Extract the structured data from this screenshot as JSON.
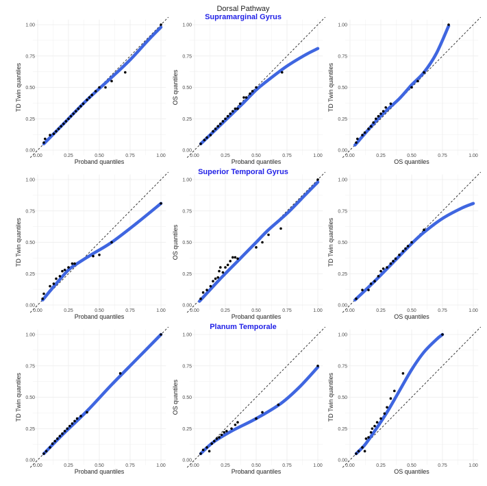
{
  "figure": {
    "title": "Dorsal Pathway",
    "row_title_color": "#1f1fe6",
    "smooth_color": "#3f66e0",
    "ref_line_color": "#222222",
    "point_color": "#000000",
    "rows": [
      {
        "title": "Supramarginal Gyrus"
      },
      {
        "title": "Superior Temporal Gyrus"
      },
      {
        "title": "Planum Temporale"
      }
    ]
  },
  "chart_data": [
    {
      "type": "scatter",
      "row": 0,
      "col": 0,
      "xlabel": "Proband quantiles",
      "ylabel": "TD Twin quantiles",
      "xlim": [
        0,
        1
      ],
      "ylim": [
        0,
        1
      ],
      "xticks": [
        "0.00",
        "0.25",
        "0.50",
        "0.75",
        "1.00"
      ],
      "yticks": [
        "0.00",
        "0.25",
        "0.50",
        "0.75",
        "1.00"
      ],
      "grid": true,
      "reference_line": "y=x",
      "points": [
        [
          0.05,
          0.06
        ],
        [
          0.06,
          0.09
        ],
        [
          0.1,
          0.12
        ],
        [
          0.13,
          0.13
        ],
        [
          0.15,
          0.15
        ],
        [
          0.17,
          0.17
        ],
        [
          0.19,
          0.19
        ],
        [
          0.21,
          0.21
        ],
        [
          0.23,
          0.23
        ],
        [
          0.25,
          0.25
        ],
        [
          0.27,
          0.27
        ],
        [
          0.29,
          0.29
        ],
        [
          0.31,
          0.31
        ],
        [
          0.33,
          0.33
        ],
        [
          0.35,
          0.35
        ],
        [
          0.37,
          0.37
        ],
        [
          0.4,
          0.4
        ],
        [
          0.42,
          0.42
        ],
        [
          0.44,
          0.44
        ],
        [
          0.47,
          0.47
        ],
        [
          0.5,
          0.5
        ],
        [
          0.55,
          0.5
        ],
        [
          0.6,
          0.55
        ],
        [
          0.71,
          0.62
        ],
        [
          1.0,
          1.0
        ]
      ],
      "smooth": [
        [
          0.05,
          0.05
        ],
        [
          0.2,
          0.2
        ],
        [
          0.4,
          0.4
        ],
        [
          0.6,
          0.58
        ],
        [
          0.75,
          0.72
        ],
        [
          0.9,
          0.88
        ],
        [
          1.0,
          0.98
        ]
      ]
    },
    {
      "type": "scatter",
      "row": 0,
      "col": 1,
      "xlabel": "Proband quantiles",
      "ylabel": "OS quantiles",
      "xlim": [
        0,
        1
      ],
      "ylim": [
        0,
        1
      ],
      "xticks": [
        "0.00",
        "0.25",
        "0.50",
        "0.75",
        "1.00"
      ],
      "yticks": [
        "0.00",
        "0.25",
        "0.50",
        "0.75",
        "1.00"
      ],
      "grid": true,
      "reference_line": "y=x",
      "points": [
        [
          0.05,
          0.05
        ],
        [
          0.08,
          0.08
        ],
        [
          0.1,
          0.1
        ],
        [
          0.13,
          0.12
        ],
        [
          0.15,
          0.15
        ],
        [
          0.17,
          0.17
        ],
        [
          0.19,
          0.19
        ],
        [
          0.21,
          0.21
        ],
        [
          0.23,
          0.23
        ],
        [
          0.25,
          0.25
        ],
        [
          0.27,
          0.27
        ],
        [
          0.29,
          0.29
        ],
        [
          0.31,
          0.31
        ],
        [
          0.33,
          0.33
        ],
        [
          0.35,
          0.33
        ],
        [
          0.37,
          0.37
        ],
        [
          0.4,
          0.42
        ],
        [
          0.42,
          0.42
        ],
        [
          0.45,
          0.45
        ],
        [
          0.47,
          0.47
        ],
        [
          0.5,
          0.5
        ],
        [
          0.71,
          0.62
        ]
      ],
      "smooth": [
        [
          0.05,
          0.05
        ],
        [
          0.2,
          0.19
        ],
        [
          0.4,
          0.38
        ],
        [
          0.5,
          0.48
        ],
        [
          0.6,
          0.56
        ],
        [
          0.75,
          0.67
        ],
        [
          0.9,
          0.76
        ],
        [
          1.0,
          0.81
        ]
      ]
    },
    {
      "type": "scatter",
      "row": 0,
      "col": 2,
      "xlabel": "OS quantiles",
      "ylabel": "TD Twin quantiles",
      "xlim": [
        0,
        1
      ],
      "ylim": [
        0,
        1
      ],
      "xticks": [
        "0.00",
        "0.25",
        "0.50",
        "0.75",
        "1.00"
      ],
      "yticks": [
        "0.00",
        "0.25",
        "0.50",
        "0.75",
        "1.00"
      ],
      "grid": true,
      "reference_line": "y=x",
      "points": [
        [
          0.05,
          0.06
        ],
        [
          0.06,
          0.09
        ],
        [
          0.1,
          0.12
        ],
        [
          0.12,
          0.14
        ],
        [
          0.15,
          0.17
        ],
        [
          0.17,
          0.19
        ],
        [
          0.19,
          0.22
        ],
        [
          0.21,
          0.25
        ],
        [
          0.23,
          0.27
        ],
        [
          0.25,
          0.29
        ],
        [
          0.27,
          0.31
        ],
        [
          0.29,
          0.34
        ],
        [
          0.33,
          0.37
        ],
        [
          0.5,
          0.5
        ],
        [
          0.55,
          0.55
        ],
        [
          0.6,
          0.62
        ],
        [
          0.8,
          1.0
        ]
      ],
      "smooth": [
        [
          0.04,
          0.04
        ],
        [
          0.2,
          0.22
        ],
        [
          0.3,
          0.32
        ],
        [
          0.4,
          0.41
        ],
        [
          0.5,
          0.52
        ],
        [
          0.6,
          0.62
        ],
        [
          0.7,
          0.77
        ],
        [
          0.8,
          0.99
        ]
      ]
    },
    {
      "type": "scatter",
      "row": 1,
      "col": 0,
      "xlabel": "Proband quantiles",
      "ylabel": "TD Twin quantiles",
      "xlim": [
        0,
        1
      ],
      "ylim": [
        0,
        1
      ],
      "xticks": [
        "0.00",
        "0.25",
        "0.50",
        "0.75",
        "1.00"
      ],
      "yticks": [
        "0.00",
        "0.25",
        "0.50",
        "0.75",
        "1.00"
      ],
      "grid": true,
      "reference_line": "y=x",
      "points": [
        [
          0.04,
          0.05
        ],
        [
          0.05,
          0.09
        ],
        [
          0.1,
          0.15
        ],
        [
          0.13,
          0.17
        ],
        [
          0.15,
          0.21
        ],
        [
          0.18,
          0.23
        ],
        [
          0.2,
          0.27
        ],
        [
          0.22,
          0.28
        ],
        [
          0.25,
          0.3
        ],
        [
          0.28,
          0.33
        ],
        [
          0.3,
          0.33
        ],
        [
          0.45,
          0.39
        ],
        [
          0.5,
          0.4
        ],
        [
          0.6,
          0.5
        ],
        [
          1.0,
          0.81
        ]
      ],
      "smooth": [
        [
          0.04,
          0.04
        ],
        [
          0.15,
          0.17
        ],
        [
          0.25,
          0.28
        ],
        [
          0.32,
          0.33
        ],
        [
          0.45,
          0.41
        ],
        [
          0.6,
          0.5
        ],
        [
          0.8,
          0.65
        ],
        [
          1.0,
          0.81
        ]
      ]
    },
    {
      "type": "scatter",
      "row": 1,
      "col": 1,
      "xlabel": "Proband quantiles",
      "ylabel": "OS quantiles",
      "xlim": [
        0,
        1
      ],
      "ylim": [
        0,
        1
      ],
      "xticks": [
        "0.00",
        "0.25",
        "0.50",
        "0.75",
        "1.00"
      ],
      "yticks": [
        "0.00",
        "0.25",
        "0.50",
        "0.75",
        "1.00"
      ],
      "grid": true,
      "reference_line": "y=x",
      "points": [
        [
          0.05,
          0.05
        ],
        [
          0.07,
          0.1
        ],
        [
          0.1,
          0.12
        ],
        [
          0.13,
          0.15
        ],
        [
          0.15,
          0.19
        ],
        [
          0.17,
          0.21
        ],
        [
          0.19,
          0.22
        ],
        [
          0.2,
          0.27
        ],
        [
          0.21,
          0.3
        ],
        [
          0.23,
          0.26
        ],
        [
          0.25,
          0.3
        ],
        [
          0.27,
          0.32
        ],
        [
          0.29,
          0.35
        ],
        [
          0.31,
          0.38
        ],
        [
          0.33,
          0.38
        ],
        [
          0.35,
          0.37
        ],
        [
          0.5,
          0.46
        ],
        [
          0.55,
          0.5
        ],
        [
          0.6,
          0.56
        ],
        [
          0.7,
          0.61
        ],
        [
          1.0,
          1.0
        ]
      ],
      "smooth": [
        [
          0.04,
          0.03
        ],
        [
          0.2,
          0.2
        ],
        [
          0.35,
          0.35
        ],
        [
          0.5,
          0.5
        ],
        [
          0.6,
          0.6
        ],
        [
          0.75,
          0.73
        ],
        [
          0.9,
          0.88
        ],
        [
          1.0,
          0.98
        ]
      ]
    },
    {
      "type": "scatter",
      "row": 1,
      "col": 2,
      "xlabel": "OS quantiles",
      "ylabel": "TD Twin quantiles",
      "xlim": [
        0,
        1
      ],
      "ylim": [
        0,
        1
      ],
      "xticks": [
        "0.00",
        "0.25",
        "0.50",
        "0.75",
        "1.00"
      ],
      "yticks": [
        "0.00",
        "0.25",
        "0.50",
        "0.75",
        "1.00"
      ],
      "grid": true,
      "reference_line": "y=x",
      "points": [
        [
          0.05,
          0.05
        ],
        [
          0.1,
          0.12
        ],
        [
          0.15,
          0.12
        ],
        [
          0.17,
          0.17
        ],
        [
          0.2,
          0.19
        ],
        [
          0.23,
          0.23
        ],
        [
          0.25,
          0.27
        ],
        [
          0.27,
          0.29
        ],
        [
          0.3,
          0.3
        ],
        [
          0.33,
          0.33
        ],
        [
          0.35,
          0.35
        ],
        [
          0.37,
          0.37
        ],
        [
          0.4,
          0.4
        ],
        [
          0.43,
          0.43
        ],
        [
          0.45,
          0.45
        ],
        [
          0.47,
          0.47
        ],
        [
          0.5,
          0.5
        ],
        [
          0.6,
          0.6
        ]
      ],
      "smooth": [
        [
          0.04,
          0.04
        ],
        [
          0.2,
          0.19
        ],
        [
          0.4,
          0.39
        ],
        [
          0.5,
          0.49
        ],
        [
          0.6,
          0.58
        ],
        [
          0.75,
          0.69
        ],
        [
          0.9,
          0.77
        ],
        [
          1.0,
          0.81
        ]
      ]
    },
    {
      "type": "scatter",
      "row": 2,
      "col": 0,
      "xlabel": "Proband quantiles",
      "ylabel": "TD Twin quantiles",
      "xlim": [
        0,
        1
      ],
      "ylim": [
        0,
        1
      ],
      "xticks": [
        "0.00",
        "0.25",
        "0.50",
        "0.75",
        "1.00"
      ],
      "yticks": [
        "0.00",
        "0.25",
        "0.50",
        "0.75",
        "1.00"
      ],
      "grid": true,
      "reference_line": "y=x",
      "points": [
        [
          0.05,
          0.05
        ],
        [
          0.07,
          0.07
        ],
        [
          0.1,
          0.1
        ],
        [
          0.12,
          0.13
        ],
        [
          0.14,
          0.15
        ],
        [
          0.16,
          0.17
        ],
        [
          0.18,
          0.19
        ],
        [
          0.2,
          0.21
        ],
        [
          0.22,
          0.23
        ],
        [
          0.24,
          0.25
        ],
        [
          0.26,
          0.27
        ],
        [
          0.28,
          0.29
        ],
        [
          0.3,
          0.31
        ],
        [
          0.32,
          0.33
        ],
        [
          0.35,
          0.35
        ],
        [
          0.4,
          0.38
        ],
        [
          0.67,
          0.69
        ],
        [
          1.0,
          1.0
        ]
      ],
      "smooth": [
        [
          0.05,
          0.05
        ],
        [
          0.2,
          0.2
        ],
        [
          0.4,
          0.39
        ],
        [
          0.6,
          0.6
        ],
        [
          0.8,
          0.8
        ],
        [
          1.0,
          1.0
        ]
      ]
    },
    {
      "type": "scatter",
      "row": 2,
      "col": 1,
      "xlabel": "Proband quantiles",
      "ylabel": "OS quantiles",
      "xlim": [
        0,
        1
      ],
      "ylim": [
        0,
        1
      ],
      "xticks": [
        "0.00",
        "0.25",
        "0.50",
        "0.75",
        "1.00"
      ],
      "yticks": [
        "0.00",
        "0.25",
        "0.50",
        "0.75",
        "1.00"
      ],
      "grid": true,
      "reference_line": "y=x",
      "points": [
        [
          0.05,
          0.05
        ],
        [
          0.07,
          0.08
        ],
        [
          0.1,
          0.1
        ],
        [
          0.12,
          0.07
        ],
        [
          0.14,
          0.13
        ],
        [
          0.16,
          0.15
        ],
        [
          0.18,
          0.17
        ],
        [
          0.2,
          0.18
        ],
        [
          0.22,
          0.2
        ],
        [
          0.24,
          0.22
        ],
        [
          0.26,
          0.23
        ],
        [
          0.3,
          0.25
        ],
        [
          0.33,
          0.28
        ],
        [
          0.35,
          0.3
        ],
        [
          0.5,
          0.33
        ],
        [
          0.55,
          0.38
        ],
        [
          0.68,
          0.44
        ],
        [
          1.0,
          0.75
        ]
      ],
      "smooth": [
        [
          0.05,
          0.05
        ],
        [
          0.15,
          0.14
        ],
        [
          0.3,
          0.23
        ],
        [
          0.5,
          0.33
        ],
        [
          0.7,
          0.45
        ],
        [
          0.85,
          0.58
        ],
        [
          1.0,
          0.74
        ]
      ]
    },
    {
      "type": "scatter",
      "row": 2,
      "col": 2,
      "xlabel": "OS quantiles",
      "ylabel": "TD Twin quantiles",
      "xlim": [
        0,
        1
      ],
      "ylim": [
        0,
        1
      ],
      "xticks": [
        "0.00",
        "0.25",
        "0.50",
        "0.75",
        "1.00"
      ],
      "yticks": [
        "0.00",
        "0.25",
        "0.50",
        "0.75",
        "1.00"
      ],
      "grid": true,
      "reference_line": "y=x",
      "points": [
        [
          0.05,
          0.05
        ],
        [
          0.07,
          0.07
        ],
        [
          0.1,
          0.1
        ],
        [
          0.12,
          0.07
        ],
        [
          0.13,
          0.17
        ],
        [
          0.15,
          0.18
        ],
        [
          0.17,
          0.22
        ],
        [
          0.18,
          0.25
        ],
        [
          0.2,
          0.27
        ],
        [
          0.22,
          0.3
        ],
        [
          0.25,
          0.33
        ],
        [
          0.28,
          0.37
        ],
        [
          0.3,
          0.42
        ],
        [
          0.33,
          0.49
        ],
        [
          0.36,
          0.55
        ],
        [
          0.43,
          0.69
        ],
        [
          0.75,
          1.0
        ]
      ],
      "smooth": [
        [
          0.05,
          0.05
        ],
        [
          0.12,
          0.12
        ],
        [
          0.2,
          0.23
        ],
        [
          0.3,
          0.38
        ],
        [
          0.4,
          0.55
        ],
        [
          0.5,
          0.72
        ],
        [
          0.6,
          0.86
        ],
        [
          0.7,
          0.96
        ],
        [
          0.75,
          1.0
        ]
      ]
    }
  ]
}
